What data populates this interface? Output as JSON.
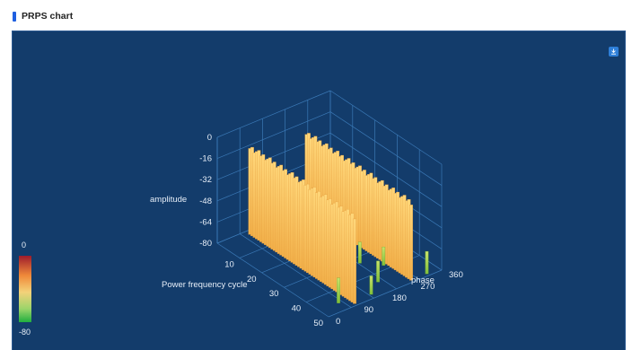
{
  "header": {
    "title": "PRPS chart"
  },
  "toolbar": {
    "download_icon": "download-icon"
  },
  "colors": {
    "panel_bg": "#133c6b",
    "grid": "#3a78b5",
    "accent": "#1f5fe0",
    "legend_top": "#9e1b2b",
    "legend_mid": "#f3d27a",
    "legend_bottom": "#1fae3f"
  },
  "chart_data": {
    "type": "bar3d",
    "axes": {
      "amplitude": {
        "name": "amplitude",
        "ticks": [
          "0",
          "-16",
          "-32",
          "-48",
          "-64",
          "-80"
        ],
        "range": [
          -80,
          0
        ]
      },
      "cycle": {
        "name": "Power frequency cycle",
        "ticks": [
          "10",
          "20",
          "30",
          "40",
          "50"
        ],
        "range": [
          0,
          50
        ]
      },
      "phase": {
        "name": "phase",
        "ticks": [
          "0",
          "90",
          "180",
          "270",
          "360"
        ],
        "range": [
          0,
          360
        ]
      }
    },
    "visual_map": {
      "max_label": "0",
      "min_label": "-80",
      "range": [
        -80,
        0
      ]
    },
    "series": [
      {
        "phase": 90,
        "points": [
          [
            2,
            -15
          ],
          [
            3,
            -13
          ],
          [
            4,
            -16
          ],
          [
            5,
            -14
          ],
          [
            6,
            -12
          ],
          [
            7,
            -15
          ],
          [
            8,
            -13
          ],
          [
            9,
            -16
          ],
          [
            10,
            -14
          ],
          [
            11,
            -12
          ],
          [
            12,
            -15
          ],
          [
            13,
            -13
          ],
          [
            14,
            -16
          ],
          [
            15,
            -14
          ],
          [
            16,
            -12
          ],
          [
            17,
            -15
          ],
          [
            18,
            -13
          ],
          [
            19,
            -16
          ],
          [
            20,
            -14
          ],
          [
            21,
            -12
          ],
          [
            22,
            -15
          ],
          [
            23,
            -13
          ],
          [
            24,
            -16
          ],
          [
            25,
            -14
          ],
          [
            26,
            -12
          ],
          [
            27,
            -15
          ],
          [
            28,
            -13
          ],
          [
            29,
            -16
          ],
          [
            30,
            -14
          ],
          [
            31,
            -12
          ],
          [
            32,
            -15
          ],
          [
            33,
            -13
          ],
          [
            34,
            -16
          ],
          [
            35,
            -14
          ],
          [
            36,
            -12
          ],
          [
            37,
            -15
          ],
          [
            38,
            -13
          ],
          [
            39,
            -16
          ],
          [
            40,
            -14
          ],
          [
            41,
            -12
          ],
          [
            42,
            -15
          ],
          [
            43,
            -13
          ],
          [
            44,
            -16
          ],
          [
            45,
            -14
          ],
          [
            46,
            -12
          ],
          [
            47,
            -15
          ],
          [
            48,
            -13
          ],
          [
            49,
            -16
          ]
        ]
      },
      {
        "phase": 270,
        "points": [
          [
            2,
            -22
          ],
          [
            3,
            -20
          ],
          [
            4,
            -23
          ],
          [
            5,
            -21
          ],
          [
            6,
            -19
          ],
          [
            7,
            -22
          ],
          [
            8,
            -20
          ],
          [
            9,
            -23
          ],
          [
            10,
            -21
          ],
          [
            11,
            -19
          ],
          [
            12,
            -22
          ],
          [
            13,
            -20
          ],
          [
            14,
            -23
          ],
          [
            15,
            -21
          ],
          [
            16,
            -19
          ],
          [
            17,
            -22
          ],
          [
            18,
            -20
          ],
          [
            19,
            -23
          ],
          [
            20,
            -21
          ],
          [
            21,
            -19
          ],
          [
            22,
            -22
          ],
          [
            23,
            -20
          ],
          [
            24,
            -23
          ],
          [
            25,
            -21
          ],
          [
            26,
            -19
          ],
          [
            27,
            -22
          ],
          [
            28,
            -20
          ],
          [
            29,
            -23
          ],
          [
            30,
            -21
          ],
          [
            31,
            -19
          ],
          [
            32,
            -22
          ],
          [
            33,
            -20
          ],
          [
            34,
            -23
          ],
          [
            35,
            -21
          ],
          [
            36,
            -19
          ],
          [
            37,
            -22
          ],
          [
            38,
            -20
          ],
          [
            39,
            -23
          ],
          [
            40,
            -21
          ],
          [
            41,
            -19
          ],
          [
            42,
            -22
          ],
          [
            43,
            -20
          ],
          [
            44,
            -23
          ],
          [
            45,
            -21
          ],
          [
            46,
            -19
          ],
          [
            47,
            -22
          ],
          [
            48,
            -20
          ],
          [
            49,
            -23
          ]
        ]
      },
      {
        "phase": "scattered",
        "points": [
          [
            6,
            300,
            -62
          ],
          [
            7,
            320,
            -64
          ],
          [
            10,
            250,
            -60
          ],
          [
            12,
            280,
            -66
          ],
          [
            15,
            230,
            -62
          ],
          [
            17,
            310,
            -64
          ],
          [
            20,
            200,
            -60
          ],
          [
            22,
            260,
            -65
          ],
          [
            25,
            180,
            -62
          ],
          [
            28,
            300,
            -66
          ],
          [
            30,
            150,
            -61
          ],
          [
            33,
            220,
            -64
          ],
          [
            36,
            120,
            -60
          ],
          [
            38,
            260,
            -66
          ],
          [
            41,
            100,
            -62
          ],
          [
            44,
            200,
            -64
          ],
          [
            46,
            60,
            -61
          ],
          [
            48,
            150,
            -66
          ],
          [
            49,
            320,
            -63
          ]
        ]
      }
    ]
  }
}
